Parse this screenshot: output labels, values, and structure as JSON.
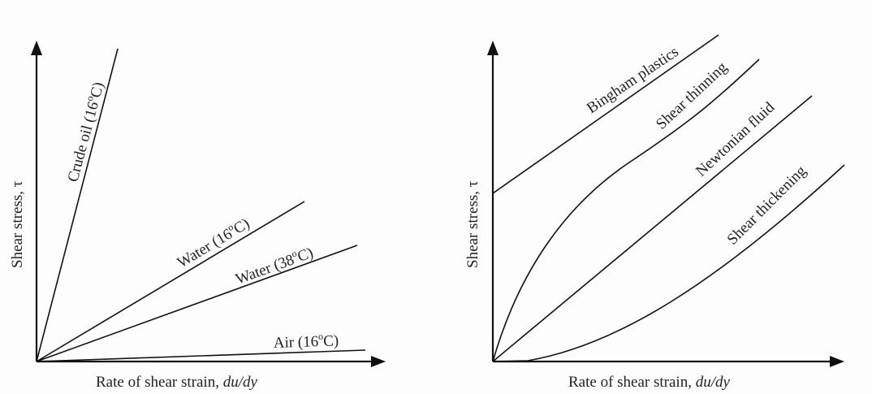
{
  "left_panel": {
    "y_axis_label": "Shear stress, τ",
    "x_axis_label_prefix": "Rate of shear strain, ",
    "x_axis_label_italic": "du/dy",
    "lines": [
      {
        "label_pre": "Crude oil (16",
        "label_sup": "o",
        "label_post": "C)"
      },
      {
        "label_pre": "Water (16",
        "label_sup": "o",
        "label_post": "C)"
      },
      {
        "label_pre": "Water (38",
        "label_sup": "o",
        "label_post": "C)"
      },
      {
        "label_pre": "Air (16",
        "label_sup": "o",
        "label_post": "C)"
      }
    ]
  },
  "right_panel": {
    "y_axis_label": "Shear stress, τ",
    "x_axis_label_prefix": "Rate of shear strain, ",
    "x_axis_label_italic": "du/dy",
    "curves": [
      {
        "label": "Bingham plastics"
      },
      {
        "label": "Shear thinning"
      },
      {
        "label": "Newtonian fluid"
      },
      {
        "label": "Shear thickening"
      }
    ]
  }
}
